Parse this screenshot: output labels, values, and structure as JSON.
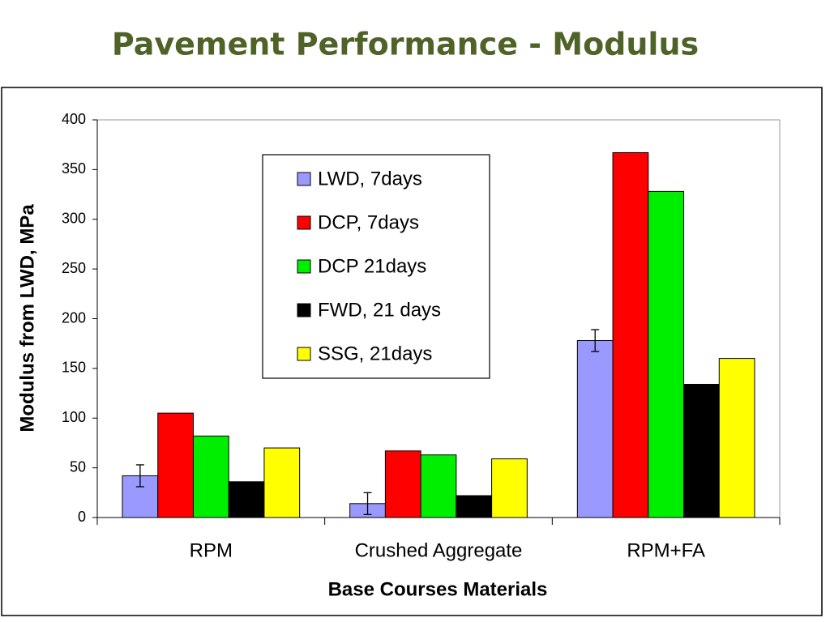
{
  "chart_data": {
    "type": "bar",
    "title": "Pavement Performance - Modulus",
    "x_label": "Base Courses Materials",
    "y_label": "Modulus from LWD, MPa",
    "categories": [
      "RPM",
      "Crushed Aggregate",
      "RPM+FA"
    ],
    "series": [
      {
        "name": "LWD, 7days",
        "color": "#9999ff",
        "values": [
          42,
          14,
          178
        ],
        "errors": [
          11,
          11,
          11
        ]
      },
      {
        "name": "DCP, 7days",
        "color": "#ff0000",
        "values": [
          105,
          67,
          367
        ]
      },
      {
        "name": "DCP 21days",
        "color": "#00ee00",
        "values": [
          82,
          63,
          328
        ]
      },
      {
        "name": "FWD, 21 days",
        "color": "#000000",
        "values": [
          36,
          22,
          134
        ]
      },
      {
        "name": "SSG, 21days",
        "color": "#ffff00",
        "values": [
          70,
          59,
          160
        ]
      }
    ],
    "ylim": [
      0,
      400
    ],
    "yticks": [
      0,
      50,
      100,
      150,
      200,
      250,
      300,
      350,
      400
    ]
  }
}
